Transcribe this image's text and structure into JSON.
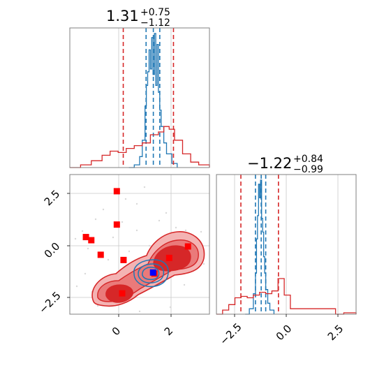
{
  "chart_data": [
    {
      "type": "histogram",
      "panel": "top-left",
      "title_value": "1.31",
      "title_plus": "+0.75",
      "title_minus": "−1.12",
      "xlim": [
        -1.8,
        3.4
      ],
      "series": [
        {
          "color": "#1f77b4",
          "bins_x": [
            0.4,
            0.6,
            0.8,
            0.9,
            1.0,
            1.05,
            1.1,
            1.15,
            1.2,
            1.25,
            1.3,
            1.35,
            1.4,
            1.45,
            1.5,
            1.55,
            1.6,
            1.7,
            1.8,
            2.0,
            2.2
          ],
          "heights": [
            0.0,
            0.02,
            0.08,
            0.2,
            0.45,
            0.6,
            0.7,
            0.86,
            0.72,
            0.95,
            0.68,
            0.98,
            0.6,
            0.9,
            0.55,
            0.42,
            0.3,
            0.18,
            0.1,
            0.03,
            0.0
          ],
          "quantile_lines": [
            1.04,
            1.31,
            1.55
          ]
        },
        {
          "color": "#d62728",
          "bins_x": [
            -1.8,
            -1.4,
            -1.0,
            -0.6,
            -0.3,
            0.0,
            0.3,
            0.6,
            0.9,
            1.2,
            1.5,
            1.7,
            1.9,
            2.1,
            2.4,
            2.7,
            3.0,
            3.4
          ],
          "heights": [
            0.0,
            0.02,
            0.05,
            0.09,
            0.12,
            0.11,
            0.14,
            0.16,
            0.18,
            0.24,
            0.26,
            0.3,
            0.28,
            0.2,
            0.1,
            0.04,
            0.02,
            0.0
          ],
          "quantile_lines": [
            0.19,
            2.06
          ]
        }
      ]
    },
    {
      "type": "scatter",
      "panel": "bottom-left",
      "xlim": [
        -1.8,
        3.4
      ],
      "ylim": [
        -3.3,
        3.4
      ],
      "xticks": [
        "0",
        "2"
      ],
      "yticks": [
        "2.5",
        "0.0",
        "−2.5"
      ],
      "red_points": [
        [
          -0.05,
          2.6
        ],
        [
          -0.05,
          1.0
        ],
        [
          -1.2,
          0.4
        ],
        [
          -1.0,
          0.25
        ],
        [
          -0.65,
          -0.45
        ],
        [
          0.2,
          -0.7
        ],
        [
          2.6,
          -0.05
        ],
        [
          1.9,
          -0.6
        ],
        [
          1.35,
          -1.35
        ],
        [
          0.15,
          -2.3
        ]
      ],
      "blue_point": [
        1.3,
        -1.3
      ]
    },
    {
      "type": "histogram",
      "panel": "bottom-right",
      "title_value": "−1.22",
      "title_plus": "+0.84",
      "title_minus": "−0.99",
      "xlim": [
        -3.4,
        3.4
      ],
      "xticks": [
        "−2.5",
        "0.0",
        "2.5"
      ],
      "series": [
        {
          "color": "#1f77b4",
          "bins_x": [
            -2.0,
            -1.8,
            -1.6,
            -1.5,
            -1.45,
            -1.4,
            -1.35,
            -1.3,
            -1.25,
            -1.2,
            -1.15,
            -1.1,
            -1.05,
            -1.0,
            -0.9,
            -0.8,
            -0.6
          ],
          "heights": [
            0.0,
            0.04,
            0.15,
            0.3,
            0.55,
            0.72,
            0.95,
            0.85,
            0.98,
            0.7,
            0.6,
            0.42,
            0.3,
            0.18,
            0.08,
            0.03,
            0.0
          ],
          "quantile_lines": [
            -1.5,
            -1.22,
            -1.0
          ]
        },
        {
          "color": "#d62728",
          "bins_x": [
            -3.4,
            -3.1,
            -2.8,
            -2.5,
            -2.2,
            -1.9,
            -1.6,
            -1.3,
            -1.0,
            -0.7,
            -0.4,
            -0.1,
            0.2,
            2.4,
            2.8,
            3.4
          ],
          "heights": [
            0.0,
            0.03,
            0.07,
            0.12,
            0.13,
            0.12,
            0.14,
            0.16,
            0.15,
            0.17,
            0.26,
            0.14,
            0.04,
            0.0,
            0.01,
            0.0
          ],
          "quantile_lines": [
            -2.21,
            -0.38
          ]
        }
      ]
    }
  ]
}
